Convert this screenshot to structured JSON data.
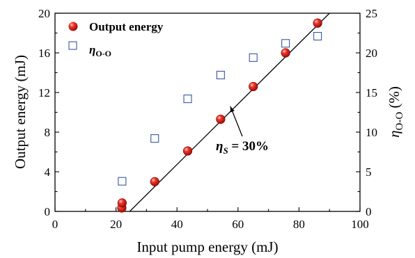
{
  "chart_data": {
    "type": "scatter",
    "xlabel": "Input pump energy (mJ)",
    "ylabel_left": "Output energy (mJ)",
    "ylabel_right": {
      "symbol": "η",
      "sub": "O-O",
      "unit": " (%)"
    },
    "xlim": [
      0,
      100
    ],
    "ylim_left": [
      0,
      20
    ],
    "ylim_right": [
      0,
      25
    ],
    "x_ticks": [
      0,
      20,
      40,
      60,
      80,
      100
    ],
    "y_left_ticks": [
      0,
      4,
      8,
      12,
      16,
      20
    ],
    "y_right_ticks": [
      0,
      5,
      10,
      15,
      20,
      25
    ],
    "legend_position": "top-left",
    "grid": false,
    "series": [
      {
        "name": "Output energy",
        "axis": "left",
        "marker": "filled-circle",
        "color": "#e0201c",
        "x": [
          21.9,
          22.0,
          32.7,
          43.5,
          54.3,
          65.0,
          75.6,
          86.1
        ],
        "y": [
          0.35,
          0.85,
          3.0,
          6.1,
          9.3,
          12.6,
          16.0,
          19.0
        ]
      },
      {
        "name": {
          "symbol": "η",
          "sub": "O-O"
        },
        "axis": "right",
        "marker": "open-square",
        "color": "#3a55a0",
        "x": [
          22.0,
          32.7,
          43.5,
          54.3,
          65.0,
          75.6,
          86.1
        ],
        "y": [
          3.8,
          9.2,
          14.2,
          17.2,
          19.4,
          21.2,
          22.1
        ]
      }
    ],
    "fit_line": {
      "x": [
        24.5,
        90.0
      ],
      "y": [
        0.0,
        20.0
      ]
    },
    "annotation": {
      "symbol": "η",
      "sub": "S",
      "text": " = 30%",
      "points_to": [
        57.5,
        10.6
      ]
    }
  }
}
